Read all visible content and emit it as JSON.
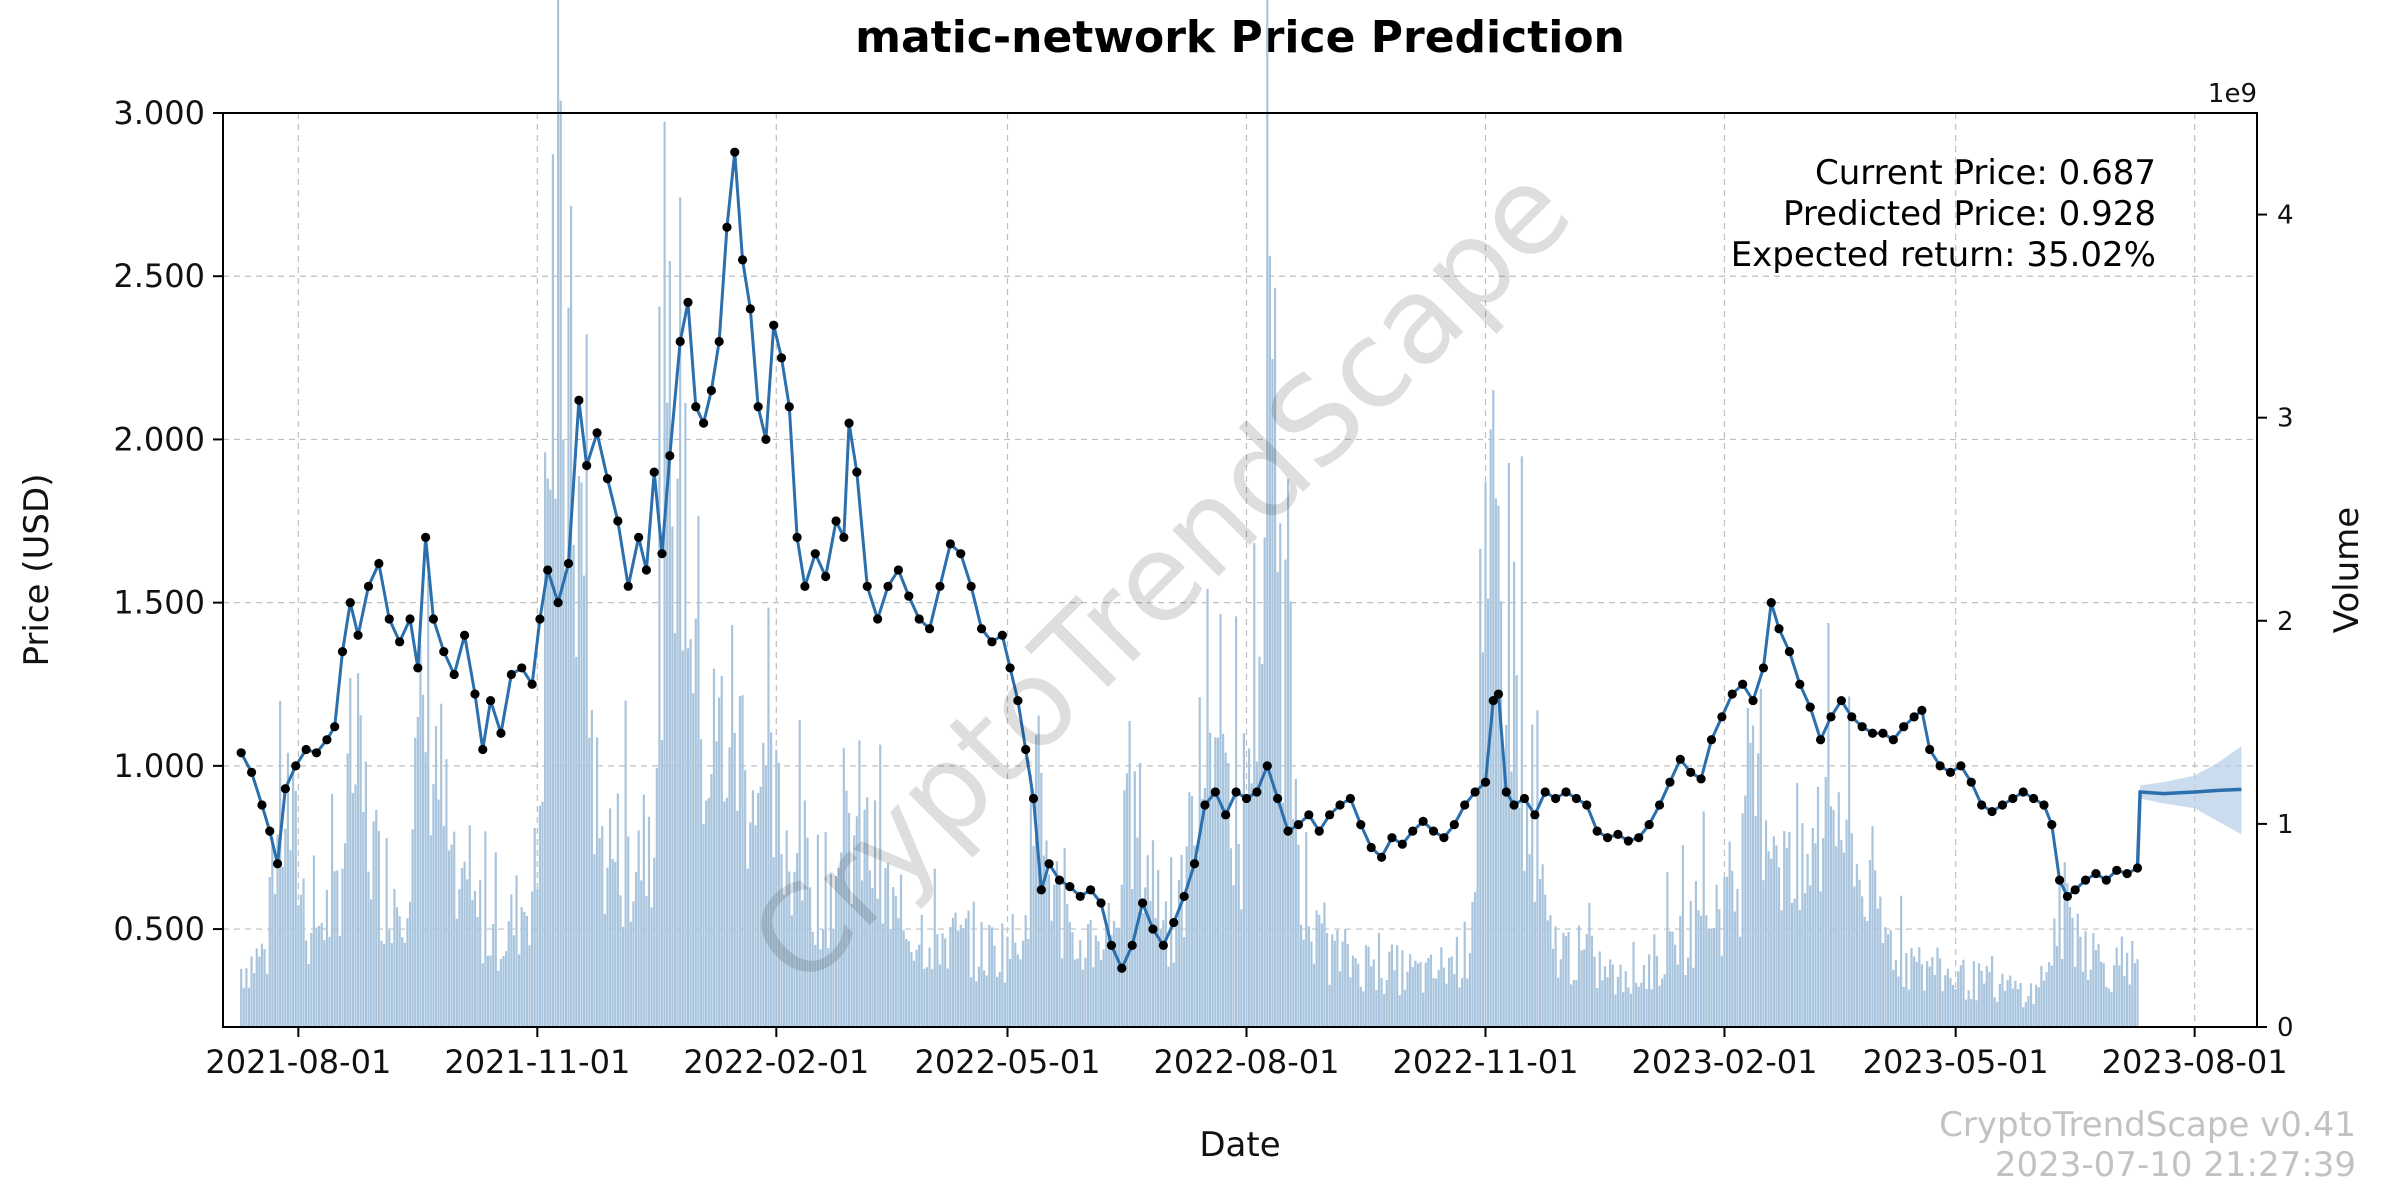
{
  "chart_data": {
    "type": "line",
    "title": "matic-network Price Prediction",
    "xlabel": "Date",
    "ylabel": "Price (USD)",
    "y2label": "Volume",
    "y2_multiplier": "1e9",
    "x_range": [
      "2021-07-03",
      "2023-08-25"
    ],
    "x_ticks": [
      "2021-08-01",
      "2021-11-01",
      "2022-02-01",
      "2022-05-01",
      "2022-08-01",
      "2022-11-01",
      "2023-02-01",
      "2023-05-01",
      "2023-08-01"
    ],
    "ylim": [
      0.2,
      3.0
    ],
    "y_ticks": [
      0.5,
      1.0,
      1.5,
      2.0,
      2.5,
      3.0
    ],
    "y_tick_labels": [
      "0.500",
      "1.000",
      "1.500",
      "2.000",
      "2.500",
      "3.000"
    ],
    "y2lim": [
      0,
      4.5
    ],
    "y2_ticks": [
      0,
      1,
      2,
      3,
      4
    ],
    "grid": true,
    "annotations": {
      "current_price": "Current Price: 0.687",
      "predicted_price": "Predicted Price: 0.928",
      "expected_return": "Expected return: 35.02%"
    },
    "watermark": "CryptoTrendScape",
    "footer": {
      "version": "CryptoTrendScape v0.41",
      "timestamp": "2023-07-10 21:27:39"
    },
    "colors": {
      "line": "#2b6fad",
      "marker": "#000000",
      "volume": "#a9c5de",
      "forecast_band": "#b3cde6"
    },
    "series": [
      {
        "kind": "price",
        "points": [
          [
            "2021-07-10",
            1.04
          ],
          [
            "2021-07-14",
            0.98
          ],
          [
            "2021-07-18",
            0.88
          ],
          [
            "2021-07-21",
            0.8
          ],
          [
            "2021-07-24",
            0.7
          ],
          [
            "2021-07-27",
            0.93
          ],
          [
            "2021-07-31",
            1.0
          ],
          [
            "2021-08-04",
            1.05
          ],
          [
            "2021-08-08",
            1.04
          ],
          [
            "2021-08-12",
            1.08
          ],
          [
            "2021-08-15",
            1.12
          ],
          [
            "2021-08-18",
            1.35
          ],
          [
            "2021-08-21",
            1.5
          ],
          [
            "2021-08-24",
            1.4
          ],
          [
            "2021-08-28",
            1.55
          ],
          [
            "2021-09-01",
            1.62
          ],
          [
            "2021-09-05",
            1.45
          ],
          [
            "2021-09-09",
            1.38
          ],
          [
            "2021-09-13",
            1.45
          ],
          [
            "2021-09-16",
            1.3
          ],
          [
            "2021-09-19",
            1.7
          ],
          [
            "2021-09-22",
            1.45
          ],
          [
            "2021-09-26",
            1.35
          ],
          [
            "2021-09-30",
            1.28
          ],
          [
            "2021-10-04",
            1.4
          ],
          [
            "2021-10-08",
            1.22
          ],
          [
            "2021-10-11",
            1.05
          ],
          [
            "2021-10-14",
            1.2
          ],
          [
            "2021-10-18",
            1.1
          ],
          [
            "2021-10-22",
            1.28
          ],
          [
            "2021-10-26",
            1.3
          ],
          [
            "2021-10-30",
            1.25
          ],
          [
            "2021-11-02",
            1.45
          ],
          [
            "2021-11-05",
            1.6
          ],
          [
            "2021-11-09",
            1.5
          ],
          [
            "2021-11-13",
            1.62
          ],
          [
            "2021-11-17",
            2.12
          ],
          [
            "2021-11-20",
            1.92
          ],
          [
            "2021-11-24",
            2.02
          ],
          [
            "2021-11-28",
            1.88
          ],
          [
            "2021-12-02",
            1.75
          ],
          [
            "2021-12-06",
            1.55
          ],
          [
            "2021-12-10",
            1.7
          ],
          [
            "2021-12-13",
            1.6
          ],
          [
            "2021-12-16",
            1.9
          ],
          [
            "2021-12-19",
            1.65
          ],
          [
            "2021-12-22",
            1.95
          ],
          [
            "2021-12-26",
            2.3
          ],
          [
            "2021-12-29",
            2.42
          ],
          [
            "2022-01-01",
            2.1
          ],
          [
            "2022-01-04",
            2.05
          ],
          [
            "2022-01-07",
            2.15
          ],
          [
            "2022-01-10",
            2.3
          ],
          [
            "2022-01-13",
            2.65
          ],
          [
            "2022-01-16",
            2.88
          ],
          [
            "2022-01-19",
            2.55
          ],
          [
            "2022-01-22",
            2.4
          ],
          [
            "2022-01-25",
            2.1
          ],
          [
            "2022-01-28",
            2.0
          ],
          [
            "2022-01-31",
            2.35
          ],
          [
            "2022-02-03",
            2.25
          ],
          [
            "2022-02-06",
            2.1
          ],
          [
            "2022-02-09",
            1.7
          ],
          [
            "2022-02-12",
            1.55
          ],
          [
            "2022-02-16",
            1.65
          ],
          [
            "2022-02-20",
            1.58
          ],
          [
            "2022-02-24",
            1.75
          ],
          [
            "2022-02-27",
            1.7
          ],
          [
            "2022-03-01",
            2.05
          ],
          [
            "2022-03-04",
            1.9
          ],
          [
            "2022-03-08",
            1.55
          ],
          [
            "2022-03-12",
            1.45
          ],
          [
            "2022-03-16",
            1.55
          ],
          [
            "2022-03-20",
            1.6
          ],
          [
            "2022-03-24",
            1.52
          ],
          [
            "2022-03-28",
            1.45
          ],
          [
            "2022-04-01",
            1.42
          ],
          [
            "2022-04-05",
            1.55
          ],
          [
            "2022-04-09",
            1.68
          ],
          [
            "2022-04-13",
            1.65
          ],
          [
            "2022-04-17",
            1.55
          ],
          [
            "2022-04-21",
            1.42
          ],
          [
            "2022-04-25",
            1.38
          ],
          [
            "2022-04-29",
            1.4
          ],
          [
            "2022-05-02",
            1.3
          ],
          [
            "2022-05-05",
            1.2
          ],
          [
            "2022-05-08",
            1.05
          ],
          [
            "2022-05-11",
            0.9
          ],
          [
            "2022-05-14",
            0.62
          ],
          [
            "2022-05-17",
            0.7
          ],
          [
            "2022-05-21",
            0.65
          ],
          [
            "2022-05-25",
            0.63
          ],
          [
            "2022-05-29",
            0.6
          ],
          [
            "2022-06-02",
            0.62
          ],
          [
            "2022-06-06",
            0.58
          ],
          [
            "2022-06-10",
            0.45
          ],
          [
            "2022-06-14",
            0.38
          ],
          [
            "2022-06-18",
            0.45
          ],
          [
            "2022-06-22",
            0.58
          ],
          [
            "2022-06-26",
            0.5
          ],
          [
            "2022-06-30",
            0.45
          ],
          [
            "2022-07-04",
            0.52
          ],
          [
            "2022-07-08",
            0.6
          ],
          [
            "2022-07-12",
            0.7
          ],
          [
            "2022-07-16",
            0.88
          ],
          [
            "2022-07-20",
            0.92
          ],
          [
            "2022-07-24",
            0.85
          ],
          [
            "2022-07-28",
            0.92
          ],
          [
            "2022-08-01",
            0.9
          ],
          [
            "2022-08-05",
            0.92
          ],
          [
            "2022-08-09",
            1.0
          ],
          [
            "2022-08-13",
            0.9
          ],
          [
            "2022-08-17",
            0.8
          ],
          [
            "2022-08-21",
            0.82
          ],
          [
            "2022-08-25",
            0.85
          ],
          [
            "2022-08-29",
            0.8
          ],
          [
            "2022-09-02",
            0.85
          ],
          [
            "2022-09-06",
            0.88
          ],
          [
            "2022-09-10",
            0.9
          ],
          [
            "2022-09-14",
            0.82
          ],
          [
            "2022-09-18",
            0.75
          ],
          [
            "2022-09-22",
            0.72
          ],
          [
            "2022-09-26",
            0.78
          ],
          [
            "2022-09-30",
            0.76
          ],
          [
            "2022-10-04",
            0.8
          ],
          [
            "2022-10-08",
            0.83
          ],
          [
            "2022-10-12",
            0.8
          ],
          [
            "2022-10-16",
            0.78
          ],
          [
            "2022-10-20",
            0.82
          ],
          [
            "2022-10-24",
            0.88
          ],
          [
            "2022-10-28",
            0.92
          ],
          [
            "2022-11-01",
            0.95
          ],
          [
            "2022-11-04",
            1.2
          ],
          [
            "2022-11-06",
            1.22
          ],
          [
            "2022-11-09",
            0.92
          ],
          [
            "2022-11-12",
            0.88
          ],
          [
            "2022-11-16",
            0.9
          ],
          [
            "2022-11-20",
            0.85
          ],
          [
            "2022-11-24",
            0.92
          ],
          [
            "2022-11-28",
            0.9
          ],
          [
            "2022-12-02",
            0.92
          ],
          [
            "2022-12-06",
            0.9
          ],
          [
            "2022-12-10",
            0.88
          ],
          [
            "2022-12-14",
            0.8
          ],
          [
            "2022-12-18",
            0.78
          ],
          [
            "2022-12-22",
            0.79
          ],
          [
            "2022-12-26",
            0.77
          ],
          [
            "2022-12-30",
            0.78
          ],
          [
            "2023-01-03",
            0.82
          ],
          [
            "2023-01-07",
            0.88
          ],
          [
            "2023-01-11",
            0.95
          ],
          [
            "2023-01-15",
            1.02
          ],
          [
            "2023-01-19",
            0.98
          ],
          [
            "2023-01-23",
            0.96
          ],
          [
            "2023-01-27",
            1.08
          ],
          [
            "2023-01-31",
            1.15
          ],
          [
            "2023-02-04",
            1.22
          ],
          [
            "2023-02-08",
            1.25
          ],
          [
            "2023-02-12",
            1.2
          ],
          [
            "2023-02-16",
            1.3
          ],
          [
            "2023-02-19",
            1.5
          ],
          [
            "2023-02-22",
            1.42
          ],
          [
            "2023-02-26",
            1.35
          ],
          [
            "2023-03-02",
            1.25
          ],
          [
            "2023-03-06",
            1.18
          ],
          [
            "2023-03-10",
            1.08
          ],
          [
            "2023-03-14",
            1.15
          ],
          [
            "2023-03-18",
            1.2
          ],
          [
            "2023-03-22",
            1.15
          ],
          [
            "2023-03-26",
            1.12
          ],
          [
            "2023-03-30",
            1.1
          ],
          [
            "2023-04-03",
            1.1
          ],
          [
            "2023-04-07",
            1.08
          ],
          [
            "2023-04-11",
            1.12
          ],
          [
            "2023-04-15",
            1.15
          ],
          [
            "2023-04-18",
            1.17
          ],
          [
            "2023-04-21",
            1.05
          ],
          [
            "2023-04-25",
            1.0
          ],
          [
            "2023-04-29",
            0.98
          ],
          [
            "2023-05-03",
            1.0
          ],
          [
            "2023-05-07",
            0.95
          ],
          [
            "2023-05-11",
            0.88
          ],
          [
            "2023-05-15",
            0.86
          ],
          [
            "2023-05-19",
            0.88
          ],
          [
            "2023-05-23",
            0.9
          ],
          [
            "2023-05-27",
            0.92
          ],
          [
            "2023-05-31",
            0.9
          ],
          [
            "2023-06-04",
            0.88
          ],
          [
            "2023-06-07",
            0.82
          ],
          [
            "2023-06-10",
            0.65
          ],
          [
            "2023-06-13",
            0.6
          ],
          [
            "2023-06-16",
            0.62
          ],
          [
            "2023-06-20",
            0.65
          ],
          [
            "2023-06-24",
            0.67
          ],
          [
            "2023-06-28",
            0.65
          ],
          [
            "2023-07-02",
            0.68
          ],
          [
            "2023-07-06",
            0.67
          ],
          [
            "2023-07-10",
            0.687
          ]
        ]
      },
      {
        "kind": "forecast",
        "points": [
          [
            "2023-07-10",
            0.687
          ],
          [
            "2023-07-11",
            0.92
          ],
          [
            "2023-07-20",
            0.915
          ],
          [
            "2023-08-01",
            0.92
          ],
          [
            "2023-08-10",
            0.925
          ],
          [
            "2023-08-19",
            0.928
          ]
        ],
        "upper": [
          [
            "2023-07-10",
            0.687
          ],
          [
            "2023-07-11",
            0.94
          ],
          [
            "2023-07-20",
            0.95
          ],
          [
            "2023-08-01",
            0.97
          ],
          [
            "2023-08-10",
            1.01
          ],
          [
            "2023-08-19",
            1.06
          ]
        ],
        "lower": [
          [
            "2023-07-10",
            0.687
          ],
          [
            "2023-07-11",
            0.9
          ],
          [
            "2023-07-20",
            0.885
          ],
          [
            "2023-08-01",
            0.87
          ],
          [
            "2023-08-10",
            0.83
          ],
          [
            "2023-08-19",
            0.79
          ]
        ]
      }
    ],
    "volume": {
      "unit": "1e9",
      "points": [
        [
          "2021-07-10",
          0.35
        ],
        [
          "2021-07-20",
          0.45
        ],
        [
          "2021-07-27",
          1.4
        ],
        [
          "2021-08-05",
          0.6
        ],
        [
          "2021-08-15",
          0.7
        ],
        [
          "2021-08-22",
          1.6
        ],
        [
          "2021-09-01",
          0.9
        ],
        [
          "2021-09-10",
          0.8
        ],
        [
          "2021-09-20",
          2.0
        ],
        [
          "2021-10-01",
          0.7
        ],
        [
          "2021-10-10",
          0.65
        ],
        [
          "2021-10-20",
          0.55
        ],
        [
          "2021-11-01",
          0.9
        ],
        [
          "2021-11-07",
          4.3
        ],
        [
          "2021-11-16",
          3.2
        ],
        [
          "2021-11-25",
          1.1
        ],
        [
          "2021-12-05",
          1.0
        ],
        [
          "2021-12-15",
          1.3
        ],
        [
          "2021-12-24",
          3.9
        ],
        [
          "2022-01-05",
          1.6
        ],
        [
          "2022-01-15",
          1.8
        ],
        [
          "2022-01-25",
          1.4
        ],
        [
          "2022-02-05",
          1.1
        ],
        [
          "2022-02-20",
          0.8
        ],
        [
          "2022-03-05",
          1.2
        ],
        [
          "2022-03-20",
          0.6
        ],
        [
          "2022-04-05",
          0.55
        ],
        [
          "2022-04-20",
          0.45
        ],
        [
          "2022-05-05",
          0.5
        ],
        [
          "2022-05-12",
          1.3
        ],
        [
          "2022-05-25",
          0.45
        ],
        [
          "2022-06-10",
          0.6
        ],
        [
          "2022-06-18",
          1.25
        ],
        [
          "2022-07-05",
          0.5
        ],
        [
          "2022-07-18",
          1.9
        ],
        [
          "2022-07-30",
          1.1
        ],
        [
          "2022-08-10",
          3.4
        ],
        [
          "2022-08-25",
          0.5
        ],
        [
          "2022-09-10",
          0.4
        ],
        [
          "2022-09-25",
          0.35
        ],
        [
          "2022-10-10",
          0.3
        ],
        [
          "2022-10-25",
          0.45
        ],
        [
          "2022-11-04",
          2.7
        ],
        [
          "2022-11-10",
          2.5
        ],
        [
          "2022-11-25",
          0.5
        ],
        [
          "2022-12-10",
          0.4
        ],
        [
          "2022-12-25",
          0.25
        ],
        [
          "2023-01-10",
          0.45
        ],
        [
          "2023-01-25",
          0.7
        ],
        [
          "2023-02-05",
          0.8
        ],
        [
          "2023-02-15",
          1.5
        ],
        [
          "2023-03-01",
          0.75
        ],
        [
          "2023-03-15",
          1.4
        ],
        [
          "2023-04-01",
          0.6
        ],
        [
          "2023-04-15",
          0.35
        ],
        [
          "2023-05-01",
          0.3
        ],
        [
          "2023-05-15",
          0.25
        ],
        [
          "2023-06-01",
          0.2
        ],
        [
          "2023-06-12",
          0.7
        ],
        [
          "2023-06-25",
          0.4
        ],
        [
          "2023-07-10",
          0.3
        ]
      ]
    }
  }
}
